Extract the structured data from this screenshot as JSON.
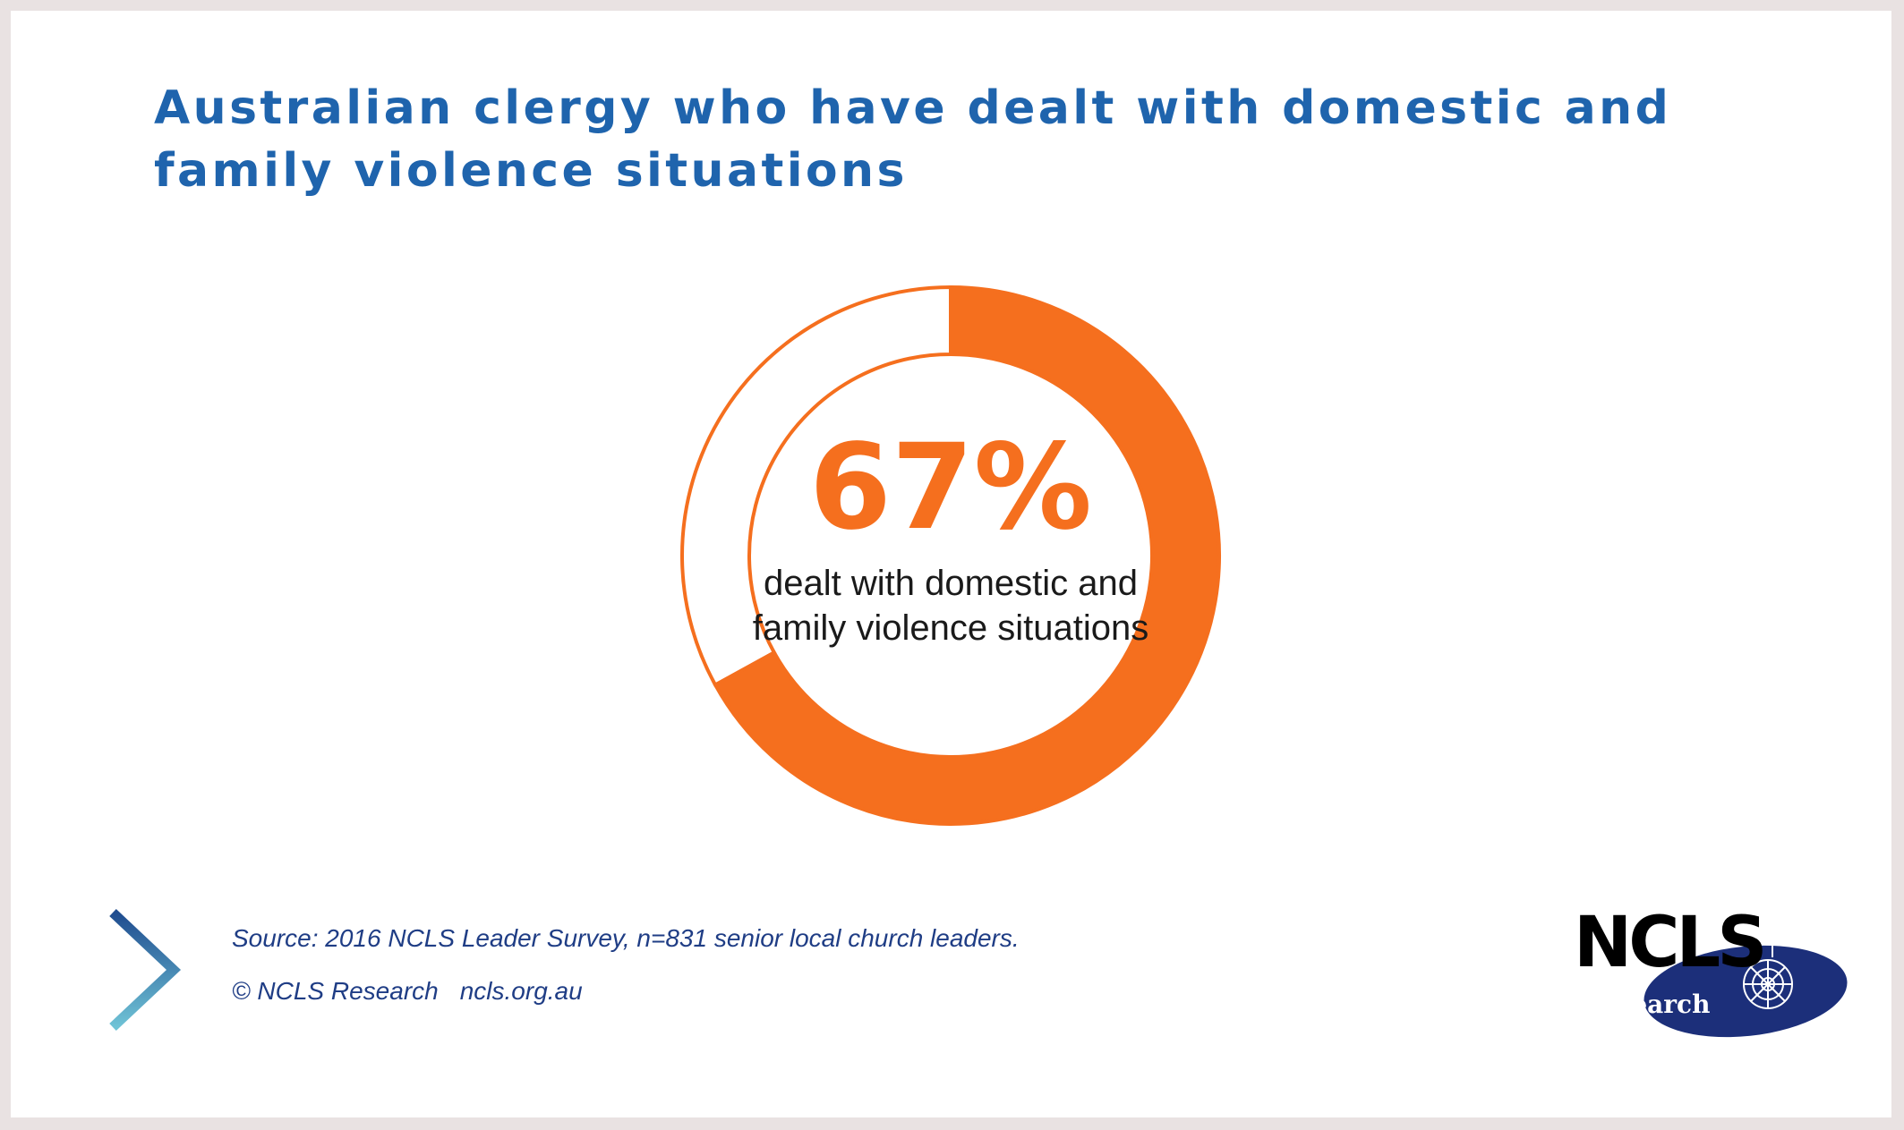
{
  "title": "Australian clergy who have dealt with domestic and family violence situations",
  "chart_data": {
    "type": "pie",
    "style": "donut",
    "value_percent": 67,
    "remainder_percent": 33,
    "center_value_label": "67%",
    "center_caption": "dealt with domestic and family violence situations"
  },
  "footer": {
    "source": "Source: 2016 NCLS Leader Survey, n=831 senior local church leaders.",
    "copyright": "© NCLS Research",
    "website": "ncls.org.au"
  },
  "logo": {
    "name": "NCLS",
    "tagline": "research"
  },
  "colors": {
    "accent": "#f56f1e",
    "title": "#1f64ad",
    "footer_text": "#1f3d85",
    "logo_navy": "#1c2f7a",
    "chevron_dark": "#1f4c8f",
    "chevron_light": "#6fc3d6"
  }
}
